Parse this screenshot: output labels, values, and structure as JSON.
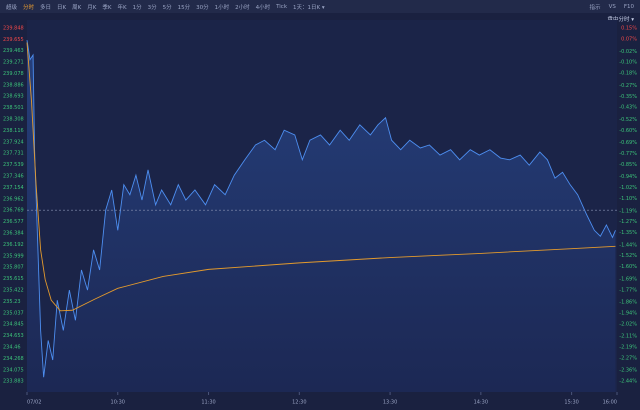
{
  "toolbar": {
    "tabs": [
      "超级",
      "分时",
      "多日",
      "日K",
      "周K",
      "月K",
      "季K",
      "年K",
      "1分",
      "3分",
      "5分",
      "15分",
      "30分",
      "1小时",
      "2小时",
      "4小时",
      "Tick",
      "1天：1日K ▾"
    ],
    "active": 1,
    "right": [
      "指示",
      "VS",
      "F10"
    ]
  },
  "panel_label": "盘中分时 ▾",
  "chart_data": {
    "type": "area",
    "xlim": [
      0,
      390
    ],
    "xticks": [
      {
        "value": 0,
        "label": "07/02"
      },
      {
        "value": 60,
        "label": "10:30"
      },
      {
        "value": 120,
        "label": "11:30"
      },
      {
        "value": 180,
        "label": "12:30"
      },
      {
        "value": 240,
        "label": "13:30"
      },
      {
        "value": 300,
        "label": "14:30"
      },
      {
        "value": 360,
        "label": "15:30"
      },
      {
        "value": 390,
        "label": "16:00"
      }
    ],
    "ylim": [
      233.7,
      239.98
    ],
    "yticks": [
      239.848,
      239.655,
      239.463,
      239.271,
      239.078,
      238.886,
      238.693,
      238.501,
      238.308,
      238.116,
      237.924,
      237.731,
      237.539,
      237.346,
      237.154,
      236.962,
      236.769,
      236.577,
      236.384,
      236.192,
      235.999,
      235.807,
      235.615,
      235.422,
      235.23,
      235.037,
      234.845,
      234.653,
      234.46,
      234.268,
      234.075,
      233.883
    ],
    "y2lim": [
      -2.52,
      0.21
    ],
    "y2ticks": [
      {
        "value": 0.15,
        "label": "0.15%"
      },
      {
        "value": 0.07,
        "label": "0.07%"
      },
      {
        "value": -0.02,
        "label": "-0.02%"
      },
      {
        "value": -0.1,
        "label": "-0.10%"
      },
      {
        "value": -0.18,
        "label": "-0.18%"
      },
      {
        "value": -0.27,
        "label": "-0.27%"
      },
      {
        "value": -0.35,
        "label": "-0.35%"
      },
      {
        "value": -0.43,
        "label": "-0.43%"
      },
      {
        "value": -0.52,
        "label": "-0.52%"
      },
      {
        "value": -0.6,
        "label": "-0.60%"
      },
      {
        "value": -0.69,
        "label": "-0.69%"
      },
      {
        "value": -0.77,
        "label": "-0.77%"
      },
      {
        "value": -0.85,
        "label": "-0.85%"
      },
      {
        "value": -0.94,
        "label": "-0.94%"
      },
      {
        "value": -1.02,
        "label": "-1.02%"
      },
      {
        "value": -1.1,
        "label": "-1.10%"
      },
      {
        "value": -1.19,
        "label": "-1.19%"
      },
      {
        "value": -1.27,
        "label": "-1.27%"
      },
      {
        "value": -1.35,
        "label": "-1.35%"
      },
      {
        "value": -1.44,
        "label": "-1.44%"
      },
      {
        "value": -1.52,
        "label": "-1.52%"
      },
      {
        "value": -1.6,
        "label": "-1.60%"
      },
      {
        "value": -1.69,
        "label": "-1.69%"
      },
      {
        "value": -1.77,
        "label": "-1.77%"
      },
      {
        "value": -1.86,
        "label": "-1.86%"
      },
      {
        "value": -1.94,
        "label": "-1.94%"
      },
      {
        "value": -2.02,
        "label": "-2.02%"
      },
      {
        "value": -2.11,
        "label": "-2.11%"
      },
      {
        "value": -2.19,
        "label": "-2.19%"
      },
      {
        "value": -2.27,
        "label": "-2.27%"
      },
      {
        "value": -2.36,
        "label": "-2.36%"
      },
      {
        "value": -2.44,
        "label": "-2.44%"
      }
    ],
    "price_line": 236.769,
    "series": [
      {
        "color": "#4d8ef0",
        "fill": true,
        "x": [
          0,
          2,
          4,
          5,
          7,
          9,
          11,
          14,
          17,
          20,
          24,
          28,
          32,
          36,
          40,
          44,
          48,
          52,
          56,
          60,
          64,
          68,
          72,
          76,
          80,
          85,
          89,
          95,
          100,
          105,
          111,
          118,
          124,
          131,
          137,
          144,
          151,
          157,
          164,
          170,
          177,
          182,
          187,
          194,
          200,
          207,
          213,
          220,
          227,
          232,
          237,
          241,
          247,
          253,
          260,
          266,
          273,
          280,
          286,
          293,
          299,
          306,
          313,
          319,
          326,
          332,
          339,
          344,
          349,
          354,
          359,
          364,
          370,
          375,
          379,
          383,
          387,
          389
        ],
        "values": [
          239.64,
          239.31,
          239.39,
          237.79,
          236.27,
          234.74,
          233.95,
          234.57,
          234.24,
          235.25,
          234.74,
          235.42,
          234.91,
          235.76,
          235.42,
          236.1,
          235.76,
          236.77,
          237.11,
          236.43,
          237.2,
          237.03,
          237.36,
          236.94,
          237.45,
          236.86,
          237.11,
          236.86,
          237.2,
          236.94,
          237.11,
          236.86,
          237.2,
          237.03,
          237.36,
          237.62,
          237.87,
          237.95,
          237.79,
          238.12,
          238.04,
          237.62,
          237.95,
          238.04,
          237.87,
          238.12,
          237.95,
          238.21,
          238.04,
          238.21,
          238.33,
          237.95,
          237.79,
          237.95,
          237.82,
          237.87,
          237.7,
          237.79,
          237.62,
          237.79,
          237.7,
          237.79,
          237.65,
          237.62,
          237.7,
          237.53,
          237.75,
          237.62,
          237.31,
          237.41,
          237.2,
          237.03,
          236.69,
          236.43,
          236.33,
          236.52,
          236.31,
          236.43
        ]
      },
      {
        "color": "#e39a2d",
        "fill": false,
        "x": [
          0,
          3,
          6,
          9,
          12,
          16,
          22,
          30,
          45,
          60,
          90,
          120,
          180,
          240,
          300,
          360,
          389
        ],
        "values": [
          239.6,
          238.6,
          237.2,
          236.1,
          235.6,
          235.25,
          235.07,
          235.08,
          235.27,
          235.45,
          235.65,
          235.77,
          235.88,
          235.97,
          236.04,
          236.12,
          236.16
        ]
      }
    ]
  }
}
